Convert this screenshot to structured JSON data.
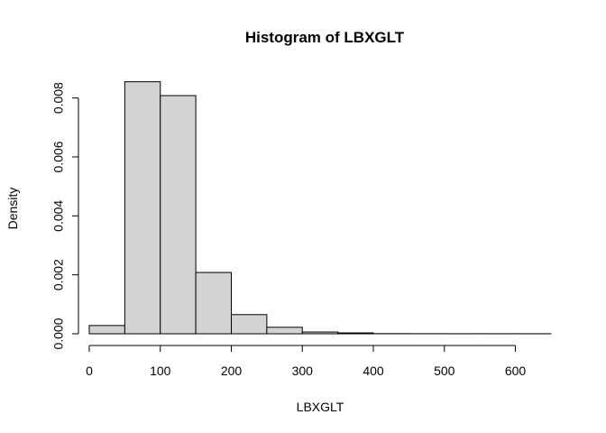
{
  "chart_data": {
    "type": "bar",
    "title": "Histogram of LBXGLT",
    "xlabel": "LBXGLT",
    "ylabel": "Density",
    "bins": [
      {
        "start": 0,
        "end": 50,
        "value": 0.00028
      },
      {
        "start": 50,
        "end": 100,
        "value": 0.00855
      },
      {
        "start": 100,
        "end": 150,
        "value": 0.00808
      },
      {
        "start": 150,
        "end": 200,
        "value": 0.00208
      },
      {
        "start": 200,
        "end": 250,
        "value": 0.00065
      },
      {
        "start": 250,
        "end": 300,
        "value": 0.00022
      },
      {
        "start": 300,
        "end": 350,
        "value": 6e-05
      },
      {
        "start": 350,
        "end": 400,
        "value": 3e-05
      },
      {
        "start": 400,
        "end": 450,
        "value": 5e-06
      },
      {
        "start": 450,
        "end": 500,
        "value": 3e-06
      },
      {
        "start": 500,
        "end": 550,
        "value": 2e-06
      },
      {
        "start": 550,
        "end": 600,
        "value": 2e-06
      },
      {
        "start": 600,
        "end": 650,
        "value": 2e-06
      }
    ],
    "xlim": [
      0,
      650
    ],
    "ylim": [
      0,
      0.0086
    ],
    "x_ticks": [
      "0",
      "100",
      "200",
      "300",
      "400",
      "500",
      "600"
    ],
    "y_ticks": [
      "0.000",
      "0.002",
      "0.004",
      "0.006",
      "0.008"
    ],
    "grid": false,
    "colors": {
      "bar_fill": "#d3d3d3",
      "bar_stroke": "#000000"
    }
  }
}
